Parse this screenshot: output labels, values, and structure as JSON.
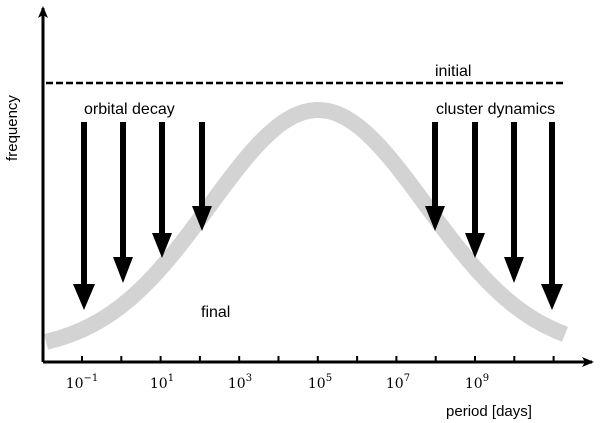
{
  "diagram": {
    "ylabel": "frequency",
    "xlabel": "period [days]",
    "initial_label": "initial",
    "final_label": "final",
    "left_process_label": "orbital decay",
    "right_process_label": "cluster dynamics",
    "x_scale": "log",
    "x_ticks": [
      {
        "mantissa": "10",
        "exponent": "−1"
      },
      {
        "mantissa": "10",
        "exponent": "1"
      },
      {
        "mantissa": "10",
        "exponent": "3"
      },
      {
        "mantissa": "10",
        "exponent": "5"
      },
      {
        "mantissa": "10",
        "exponent": "7"
      },
      {
        "mantissa": "10",
        "exponent": "9"
      }
    ],
    "colors": {
      "axes": "#000000",
      "final_band": "#d3d3d3",
      "arrows": "#000000"
    }
  }
}
